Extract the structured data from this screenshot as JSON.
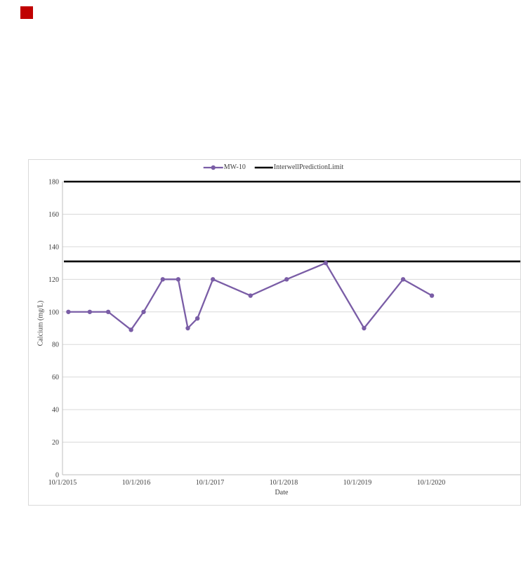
{
  "page": {
    "background": "#ffffff"
  },
  "red_marker": {
    "color": "#c00000"
  },
  "chart_card": {
    "border_color": "#d9d9d9",
    "background": "#ffffff"
  },
  "legend": {
    "items": [
      {
        "label": "MW-10",
        "color": "#7a5da6",
        "marker": "circle-on-line"
      },
      {
        "label": "InterwellPredictionLimit",
        "color": "#000000",
        "marker": "line"
      }
    ]
  },
  "axes": {
    "y_title": "Calcium (mg/L)",
    "x_title": "Date",
    "y_ticks": [
      0,
      20,
      40,
      60,
      80,
      100,
      120,
      140,
      160,
      180
    ],
    "x_ticks": [
      "10/1/2015",
      "10/1/2016",
      "10/1/2017",
      "10/1/2018",
      "10/1/2019",
      "10/1/2020"
    ],
    "grid_color": "#d9d9d9",
    "axis_color": "#bfbfbf",
    "text_color": "#404040"
  },
  "chart_data": {
    "type": "line",
    "title": "",
    "xlabel": "Date",
    "ylabel": "Calcium (mg/L)",
    "ylim": [
      0,
      180
    ],
    "x_unit": "years after 10/1/2015",
    "x_tick_labels": [
      "10/1/2015",
      "10/1/2016",
      "10/1/2017",
      "10/1/2018",
      "10/1/2019",
      "10/1/2020"
    ],
    "grid": true,
    "legend_position": "top",
    "series": [
      {
        "name": "MW-10",
        "type": "line-markers",
        "color": "#7a5da6",
        "points": [
          {
            "x": 0.08,
            "y": 100
          },
          {
            "x": 0.37,
            "y": 100
          },
          {
            "x": 0.62,
            "y": 100
          },
          {
            "x": 0.93,
            "y": 89
          },
          {
            "x": 1.1,
            "y": 100
          },
          {
            "x": 1.36,
            "y": 120
          },
          {
            "x": 1.57,
            "y": 120
          },
          {
            "x": 1.7,
            "y": 90
          },
          {
            "x": 1.83,
            "y": 96
          },
          {
            "x": 2.04,
            "y": 120
          },
          {
            "x": 2.55,
            "y": 110
          },
          {
            "x": 3.04,
            "y": 120
          },
          {
            "x": 3.57,
            "y": 130
          },
          {
            "x": 4.09,
            "y": 90
          },
          {
            "x": 4.62,
            "y": 120
          },
          {
            "x": 5.01,
            "y": 110
          }
        ]
      },
      {
        "name": "InterwellPredictionLimit",
        "type": "hline",
        "color": "#000000",
        "values": [
          180,
          131
        ]
      }
    ]
  }
}
